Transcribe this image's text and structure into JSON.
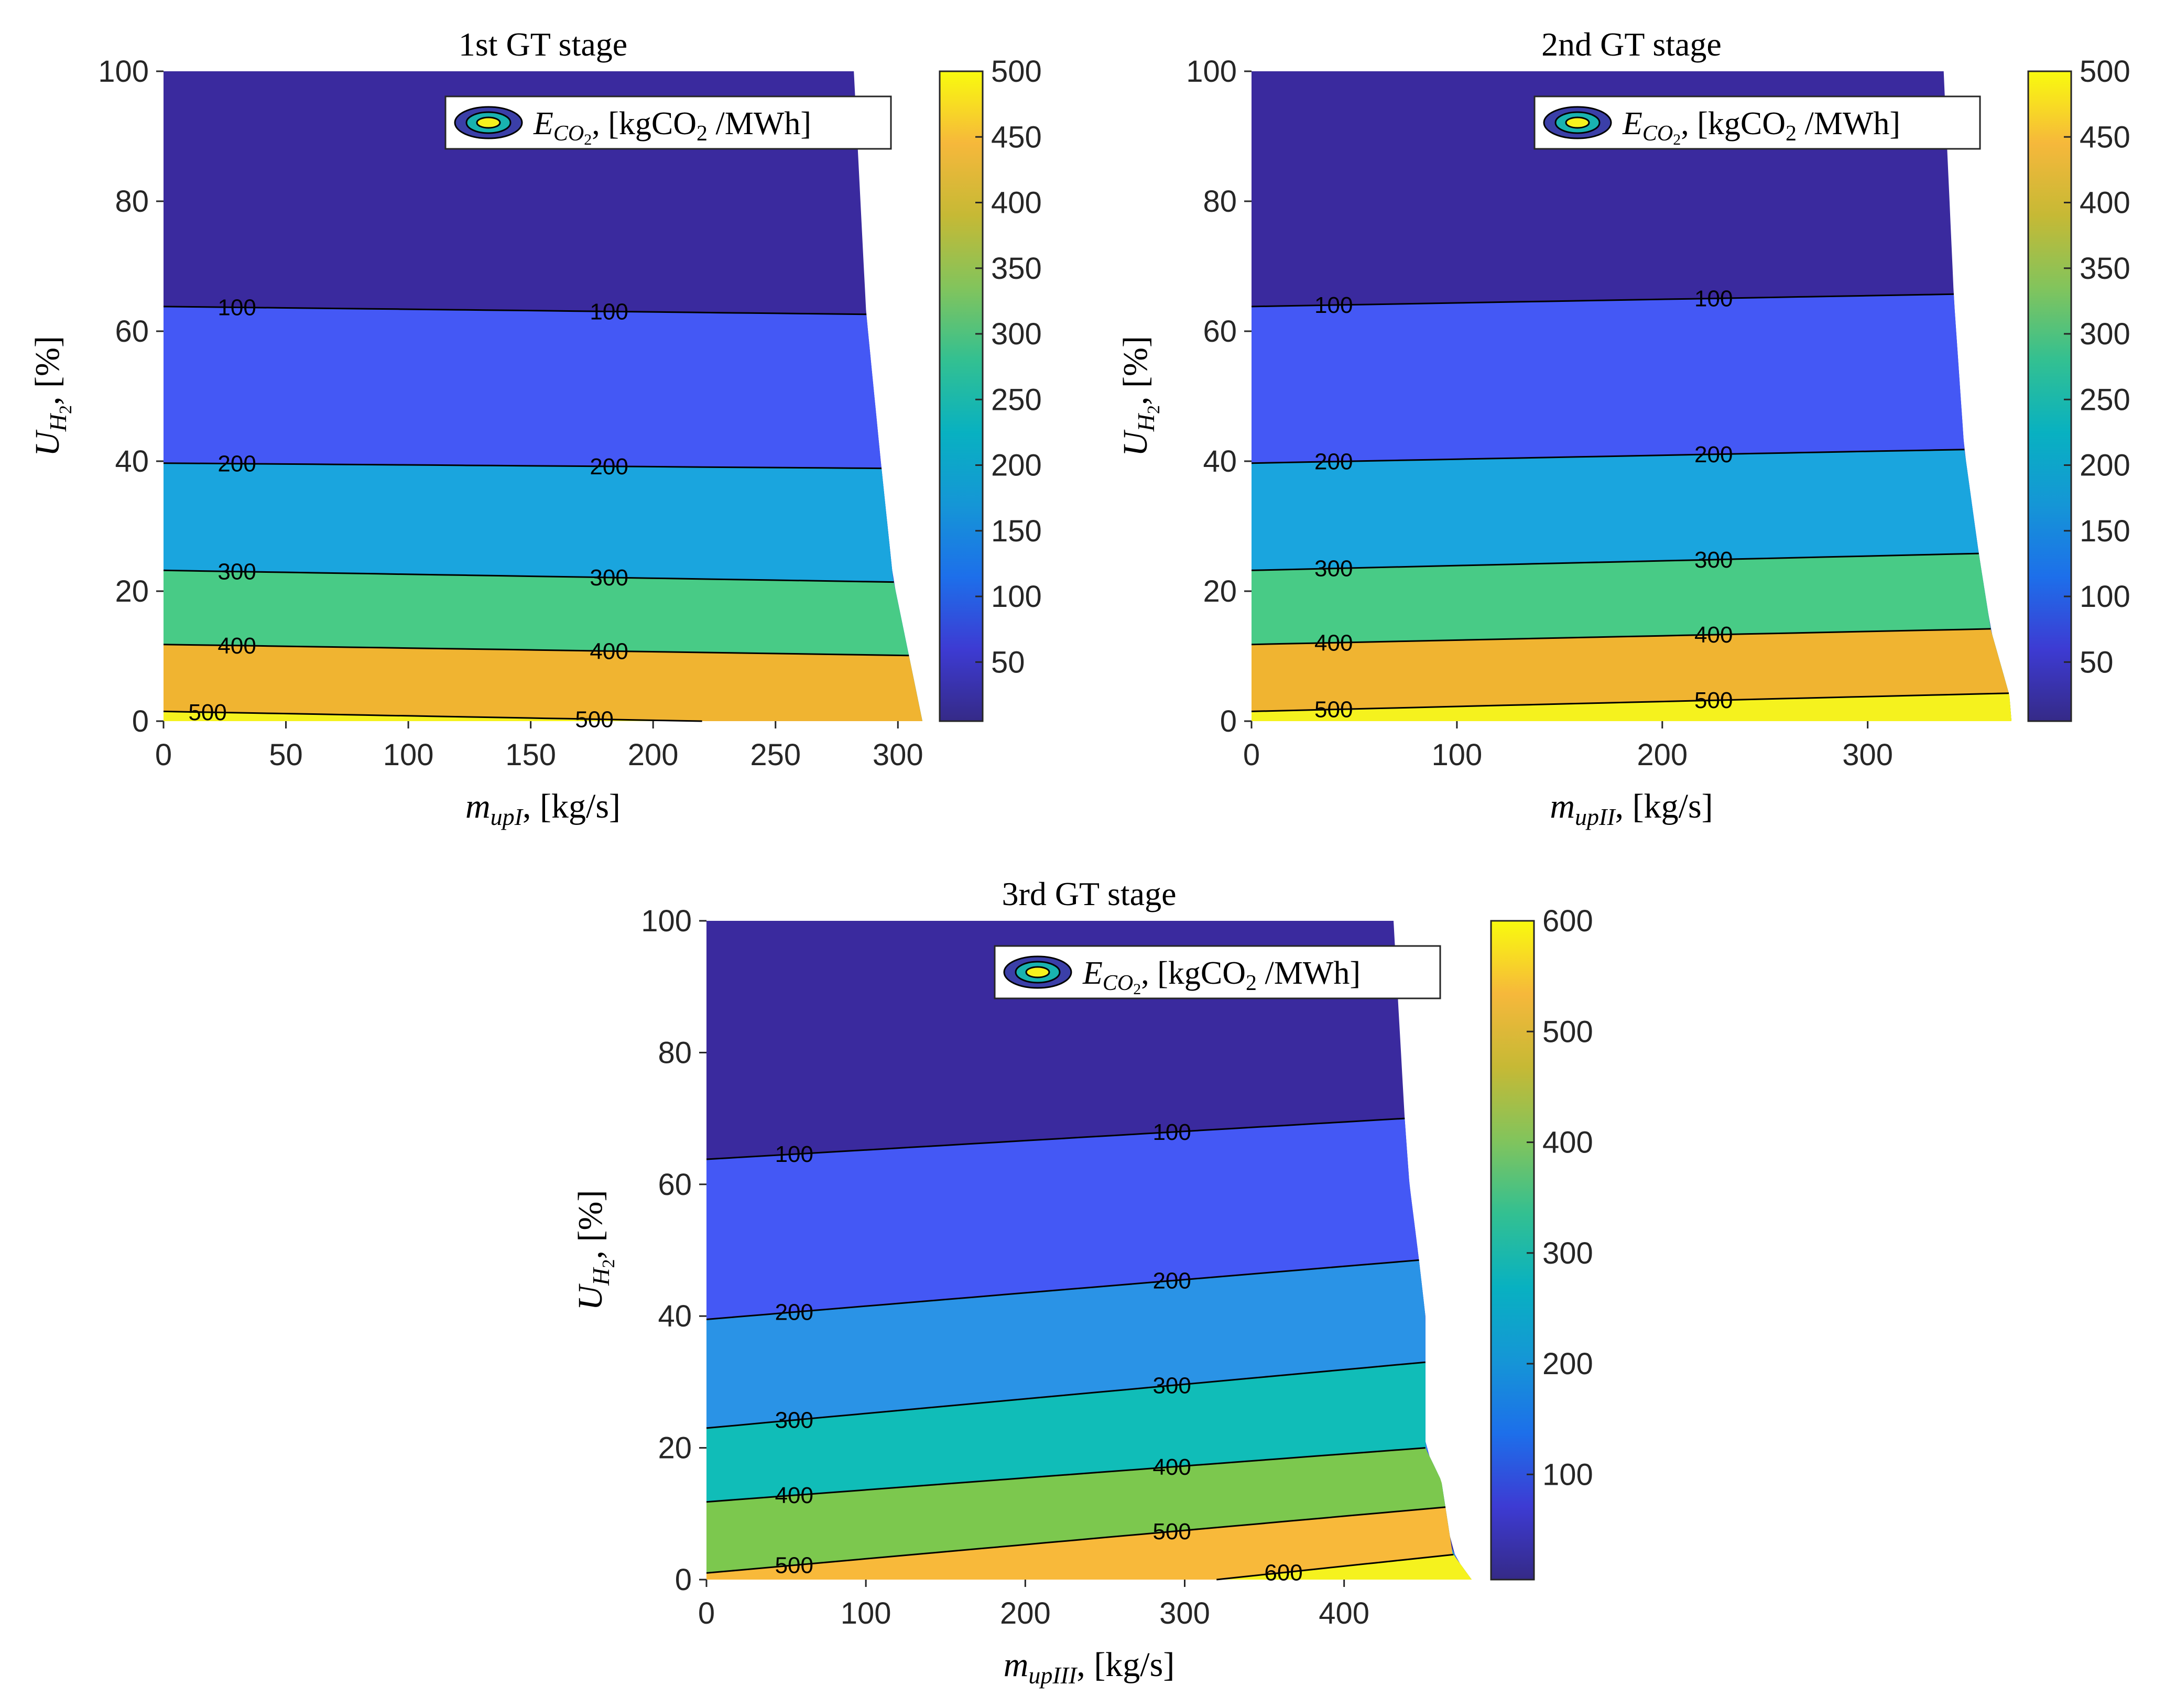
{
  "chart_data": [
    {
      "type": "contour",
      "title": "1st GT stage",
      "xlabel": {
        "var": "m",
        "sub": "upI",
        "unit": ", [kg/s]"
      },
      "ylabel": {
        "var": "U",
        "sub": "H",
        "subsub": "2",
        "unit": ", [%]"
      },
      "legend": {
        "var": "E",
        "sub": "CO",
        "subsub": "2",
        "unit": ", [kgCO",
        "unit_sub": "2",
        "unit_end": " /MWh]",
        "placement": "top-right"
      },
      "xlim": [
        0,
        310
      ],
      "ylim": [
        0,
        100
      ],
      "xticks": [
        0,
        50,
        100,
        150,
        200,
        250,
        300
      ],
      "yticks": [
        0,
        20,
        40,
        60,
        80,
        100
      ],
      "colorbar": {
        "min": 5,
        "max": 500,
        "ticks": [
          50,
          100,
          150,
          200,
          250,
          300,
          350,
          400,
          450,
          500
        ]
      },
      "boundary": [
        [
          282,
          100
        ],
        [
          287,
          63
        ],
        [
          293,
          40
        ],
        [
          298,
          22
        ],
        [
          304,
          11
        ],
        [
          310,
          0
        ]
      ],
      "levels": [
        {
          "value": 100,
          "y0": 63.8,
          "y1": 62.6,
          "label": "100",
          "label_x": [
            30,
            182
          ]
        },
        {
          "value": 200,
          "y0": 39.7,
          "y1": 38.9,
          "label": "200",
          "label_x": [
            30,
            182
          ]
        },
        {
          "value": 300,
          "y0": 23.2,
          "y1": 21.4,
          "label": "300",
          "label_x": [
            30,
            182
          ]
        },
        {
          "value": 400,
          "y0": 11.8,
          "y1": 10.1,
          "label": "400",
          "label_x": [
            30,
            182
          ]
        },
        {
          "value": 500,
          "y0": 1.5,
          "y1": 0.0,
          "label": "500",
          "label_x": [
            18,
            176
          ],
          "x_end": 220
        }
      ],
      "band_colors": [
        "#3a2a9e",
        "#4458f5",
        "#1aa5de",
        "#48cb86",
        "#f0b431",
        "#f5f21e"
      ]
    },
    {
      "type": "contour",
      "title": "2nd GT stage",
      "xlabel": {
        "var": "m",
        "sub": "upII",
        "unit": ", [kg/s]"
      },
      "ylabel": {
        "var": "U",
        "sub": "H",
        "subsub": "2",
        "unit": ", [%]"
      },
      "legend": {
        "var": "E",
        "sub": "CO",
        "subsub": "2",
        "unit": ", [kgCO",
        "unit_sub": "2",
        "unit_end": " /MWh]",
        "placement": "top-right"
      },
      "xlim": [
        0,
        370
      ],
      "ylim": [
        0,
        100
      ],
      "xticks": [
        0,
        100,
        200,
        300
      ],
      "yticks": [
        0,
        20,
        40,
        60,
        80,
        100
      ],
      "colorbar": {
        "min": 5,
        "max": 500,
        "ticks": [
          50,
          100,
          150,
          200,
          250,
          300,
          350,
          400,
          450,
          500
        ]
      },
      "boundary": [
        [
          337,
          100
        ],
        [
          342,
          65
        ],
        [
          347,
          42
        ],
        [
          354,
          26
        ],
        [
          360,
          14
        ],
        [
          369,
          4
        ],
        [
          370,
          0
        ]
      ],
      "levels": [
        {
          "value": 100,
          "y0": 63.8,
          "y1": 65.7,
          "label": "100",
          "label_x": [
            40,
            225
          ]
        },
        {
          "value": 200,
          "y0": 39.7,
          "y1": 41.8,
          "label": "200",
          "label_x": [
            40,
            225
          ]
        },
        {
          "value": 300,
          "y0": 23.2,
          "y1": 25.8,
          "label": "300",
          "label_x": [
            40,
            225
          ]
        },
        {
          "value": 400,
          "y0": 11.8,
          "y1": 14.2,
          "label": "400",
          "label_x": [
            40,
            225
          ]
        },
        {
          "value": 500,
          "y0": 1.5,
          "y1": 4.3,
          "label": "500",
          "label_x": [
            40,
            225
          ]
        }
      ],
      "band_colors": [
        "#3a2a9e",
        "#4458f5",
        "#1aa5de",
        "#48cb86",
        "#f0b431",
        "#f5f21e"
      ]
    },
    {
      "type": "contour",
      "title": "3rd GT stage",
      "xlabel": {
        "var": "m",
        "sub": "upIII",
        "unit": ", [kg/s]"
      },
      "ylabel": {
        "var": "U",
        "sub": "H",
        "subsub": "2",
        "unit": ", [%]"
      },
      "legend": {
        "var": "E",
        "sub": "CO",
        "subsub": "2",
        "unit": ", [kgCO",
        "unit_sub": "2",
        "unit_end": " /MWh]",
        "placement": "top-right"
      },
      "xlim": [
        0,
        480
      ],
      "ylim": [
        0,
        100
      ],
      "xticks": [
        0,
        100,
        200,
        300,
        400
      ],
      "yticks": [
        0,
        20,
        40,
        60,
        80,
        100
      ],
      "colorbar": {
        "min": 5,
        "max": 600,
        "ticks": [
          100,
          200,
          300,
          400,
          500,
          600
        ]
      },
      "boundary": [
        [
          431,
          100
        ],
        [
          438,
          70
        ],
        [
          441,
          60
        ],
        [
          447,
          48.5
        ],
        [
          451,
          40
        ],
        [
          451,
          33
        ],
        [
          451,
          20
        ],
        [
          461,
          15
        ],
        [
          468,
          4
        ],
        [
          480,
          0
        ]
      ],
      "levels": [
        {
          "value": 100,
          "y0": 63.8,
          "y1": 70.0,
          "label": "100",
          "label_x": [
            55,
            292
          ]
        },
        {
          "value": 200,
          "y0": 39.5,
          "y1": 48.5,
          "label": "200",
          "label_x": [
            55,
            292
          ]
        },
        {
          "value": 300,
          "y0": 23.0,
          "y1": 33.0,
          "label": "300",
          "label_x": [
            55,
            292
          ]
        },
        {
          "value": 400,
          "y0": 11.8,
          "y1": 20.0,
          "label": "400",
          "label_x": [
            55,
            292
          ]
        },
        {
          "value": 500,
          "y0": 1.0,
          "y1": 11.0,
          "label": "500",
          "label_x": [
            55,
            292
          ]
        },
        {
          "value": 600,
          "y0": 0.0,
          "y1": 3.8,
          "label": "600",
          "label_x": [
            362
          ],
          "x_start": 320
        }
      ],
      "band_colors": [
        "#3a2a9e",
        "#4458f5",
        "#2a93e6",
        "#10bdb8",
        "#7cc84e",
        "#f8b93a",
        "#f5f21e"
      ]
    }
  ],
  "colors": {
    "parula": [
      "#352a87",
      "#3d3bd3",
      "#1d6fea",
      "#1596d6",
      "#08b1c1",
      "#33c091",
      "#82c45c",
      "#c6b935",
      "#f6b83b",
      "#f9fb0e"
    ]
  }
}
